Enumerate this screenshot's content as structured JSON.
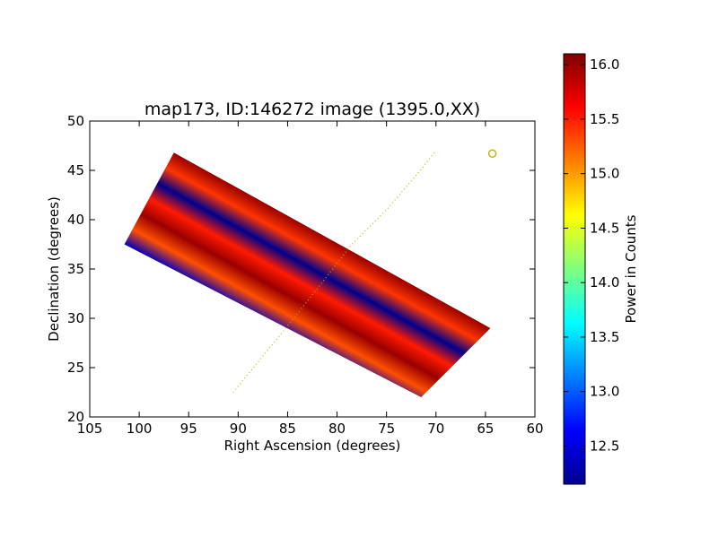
{
  "chart_data": {
    "type": "heatmap",
    "title": "map173, ID:146272 image (1395.0,XX)",
    "xlabel": "Right Ascension (degrees)",
    "ylabel": "Declination (degrees)",
    "xlim": [
      105,
      60
    ],
    "ylim": [
      20,
      50
    ],
    "xticks": [
      "105",
      "100",
      "95",
      "90",
      "85",
      "80",
      "75",
      "70",
      "65",
      "60"
    ],
    "xtick_values": [
      105,
      100,
      95,
      90,
      85,
      80,
      75,
      70,
      65,
      60
    ],
    "yticks": [
      "20",
      "25",
      "30",
      "35",
      "40",
      "45",
      "50"
    ],
    "ytick_values": [
      20,
      25,
      30,
      35,
      40,
      45,
      50
    ],
    "colorbar": {
      "label": "Power in Counts",
      "range": [
        12.15,
        16.1
      ],
      "ticks": [
        "12.5",
        "13.0",
        "13.5",
        "14.0",
        "14.5",
        "15.0",
        "15.5",
        "16.0"
      ],
      "tick_values": [
        12.5,
        13.0,
        13.5,
        14.0,
        14.5,
        15.0,
        15.5,
        16.0
      ],
      "colormap": "jet"
    },
    "swath": {
      "corners_ra_dec": [
        [
          96.5,
          46.8
        ],
        [
          101.5,
          37.5
        ],
        [
          71.5,
          22.0
        ],
        [
          64.5,
          29.0
        ]
      ],
      "stripes_top_to_bottom": [
        {
          "value": 16.0
        },
        {
          "value": 15.4
        },
        {
          "value": 12.2
        },
        {
          "value": 15.5
        },
        {
          "value": 16.0
        },
        {
          "value": 15.3
        },
        {
          "value": 12.4
        }
      ]
    },
    "dotted_track": {
      "color": "#b5b500",
      "points_ra_dec": [
        [
          90.5,
          22.5
        ],
        [
          86.0,
          28.0
        ],
        [
          82.0,
          33.0
        ],
        [
          78.5,
          37.5
        ],
        [
          75.0,
          41.0
        ],
        [
          72.0,
          44.5
        ],
        [
          70.0,
          47.0
        ]
      ]
    },
    "marker": {
      "shape": "circle",
      "color": "#c8b400",
      "ra": 64.3,
      "dec": 46.7
    }
  }
}
